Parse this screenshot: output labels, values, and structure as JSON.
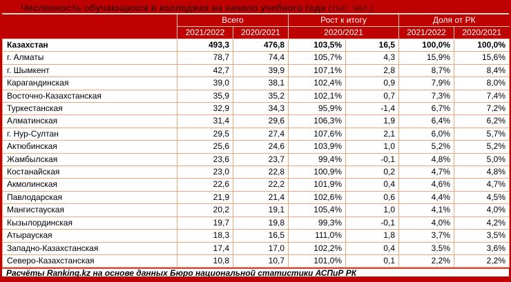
{
  "colors": {
    "accent_red": "#BE0202",
    "title_text": "#4E0503",
    "header_text": "#FFFFFF",
    "cell_border_orange": "#F2A478",
    "header_divider_pink": "#F3CDBF",
    "footer_rule_red": "#C84A44",
    "row_background": "#FFFFFF",
    "data_text": "#000000"
  },
  "chart_data": {
    "type": "table",
    "title": "Численность обучающихся в колледжах на начало учебного года",
    "title_unit": " (тыс. чел.)",
    "column_groups": [
      "Всего",
      "Рост к итогу",
      "Доля от РК"
    ],
    "subheaders": [
      "2021/2022",
      "2020/2021",
      "2020/2021",
      "2021/2022",
      "2020/2021"
    ],
    "columns": [
      "Регион",
      "Всего 2021/2022",
      "Всего 2020/2021",
      "Рост к итогу 2020/2021, %",
      "Рост к итогу 2020/2021, абс.",
      "Доля от РК 2021/2022",
      "Доля от РК 2020/2021"
    ],
    "rows": [
      {
        "region": "Казахстан",
        "bold": true,
        "values": [
          "493,3",
          "476,8",
          "103,5%",
          "16,5",
          "100,0%",
          "100,0%"
        ]
      },
      {
        "region": "г. Алматы",
        "bold": false,
        "values": [
          "78,7",
          "74,4",
          "105,7%",
          "4,3",
          "15,9%",
          "15,6%"
        ]
      },
      {
        "region": "г. Шымкент",
        "bold": false,
        "values": [
          "42,7",
          "39,9",
          "107,1%",
          "2,8",
          "8,7%",
          "8,4%"
        ]
      },
      {
        "region": "Карагандинская",
        "bold": false,
        "values": [
          "39,0",
          "38,1",
          "102,4%",
          "0,9",
          "7,9%",
          "8,0%"
        ]
      },
      {
        "region": "Восточно-Казахстанская",
        "bold": false,
        "values": [
          "35,9",
          "35,2",
          "102,1%",
          "0,7",
          "7,3%",
          "7,4%"
        ]
      },
      {
        "region": "Туркестанская",
        "bold": false,
        "values": [
          "32,9",
          "34,3",
          "95,9%",
          "-1,4",
          "6,7%",
          "7,2%"
        ]
      },
      {
        "region": "Алматинская",
        "bold": false,
        "values": [
          "31,4",
          "29,6",
          "106,3%",
          "1,9",
          "6,4%",
          "6,2%"
        ]
      },
      {
        "region": "г. Нур-Султан",
        "bold": false,
        "values": [
          "29,5",
          "27,4",
          "107,6%",
          "2,1",
          "6,0%",
          "5,7%"
        ]
      },
      {
        "region": "Актюбинская",
        "bold": false,
        "values": [
          "25,6",
          "24,6",
          "103,9%",
          "1,0",
          "5,2%",
          "5,2%"
        ]
      },
      {
        "region": "Жамбылская",
        "bold": false,
        "values": [
          "23,6",
          "23,7",
          "99,4%",
          "-0,1",
          "4,8%",
          "5,0%"
        ]
      },
      {
        "region": "Костанайская",
        "bold": false,
        "values": [
          "23,0",
          "22,8",
          "100,9%",
          "0,2",
          "4,7%",
          "4,8%"
        ]
      },
      {
        "region": "Акмолинская",
        "bold": false,
        "values": [
          "22,6",
          "22,2",
          "101,9%",
          "0,4",
          "4,6%",
          "4,7%"
        ]
      },
      {
        "region": "Павлодарская",
        "bold": false,
        "values": [
          "21,9",
          "21,4",
          "102,6%",
          "0,6",
          "4,4%",
          "4,5%"
        ]
      },
      {
        "region": "Мангистауская",
        "bold": false,
        "values": [
          "20,2",
          "19,1",
          "105,4%",
          "1,0",
          "4,1%",
          "4,0%"
        ]
      },
      {
        "region": "Кызылординская",
        "bold": false,
        "values": [
          "19,7",
          "19,8",
          "99,3%",
          "-0,1",
          "4,0%",
          "4,2%"
        ]
      },
      {
        "region": "Атырауская",
        "bold": false,
        "values": [
          "18,3",
          "16,5",
          "111,0%",
          "1,8",
          "3,7%",
          "3,5%"
        ]
      },
      {
        "region": "Западно-Казахстанская",
        "bold": false,
        "values": [
          "17,4",
          "17,0",
          "102,2%",
          "0,4",
          "3,5%",
          "3,6%"
        ]
      },
      {
        "region": "Северо-Казахстанская",
        "bold": false,
        "values": [
          "10,8",
          "10,7",
          "101,0%",
          "0,1",
          "2,2%",
          "2,2%"
        ]
      }
    ],
    "footer": "Расчёты Ranking.kz на основе данных Бюро национальной статистики АСПиР РК"
  }
}
